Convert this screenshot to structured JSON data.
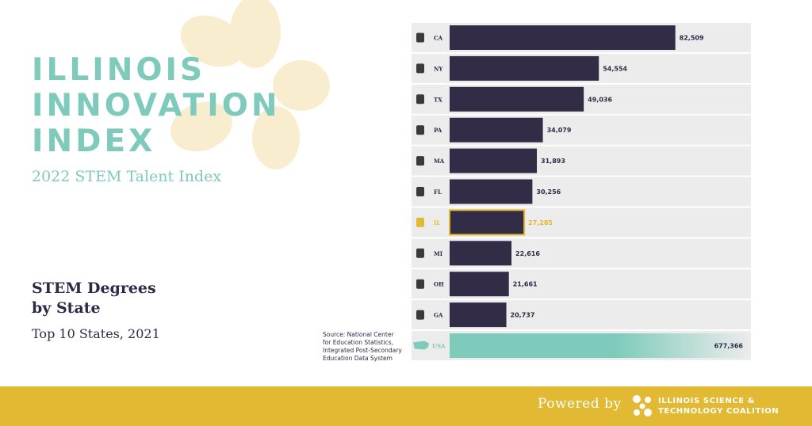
{
  "header": {
    "brand_line1": "ILLINOIS",
    "brand_line2": "INNOVATION",
    "brand_line3": "INDEX",
    "subtitle": "2022 STEM Talent Index"
  },
  "chart_heading": {
    "title_line1": "STEM Degrees",
    "title_line2": "by State",
    "subtitle": "Top 10 States, 2021"
  },
  "source": {
    "line1": "Source: National Center",
    "line2": "for Education Statistics,",
    "line3": "Integrated Post-Secondary",
    "line4": "Education Data System"
  },
  "chart_data": {
    "type": "bar",
    "orientation": "horizontal",
    "title": "STEM Degrees by State",
    "subtitle": "Top 10 States, 2021",
    "categories": [
      "CA",
      "NY",
      "TX",
      "PA",
      "MA",
      "FL",
      "IL",
      "MI",
      "OH",
      "GA"
    ],
    "values": [
      82509,
      54554,
      49036,
      34079,
      31893,
      30256,
      27285,
      22616,
      21661,
      20737
    ],
    "value_labels": [
      "82,509",
      "54,554",
      "49,036",
      "34,079",
      "31,893",
      "30,256",
      "27,285",
      "22,616",
      "21,661",
      "20,737"
    ],
    "highlight": "IL",
    "total": {
      "label": "USA",
      "value": 677366,
      "value_label": "677,366"
    },
    "xlim": [
      0,
      100000
    ],
    "colors": {
      "bar": "#322c47",
      "highlight": "#e2b933",
      "row_band": "#ececec",
      "total_bar": "#7ecbbb",
      "label": "#2e2a45"
    },
    "icons": {
      "CA": "california-icon",
      "NY": "new-york-icon",
      "TX": "texas-icon",
      "PA": "pennsylvania-icon",
      "MA": "massachusetts-icon",
      "FL": "florida-icon",
      "IL": "illinois-icon",
      "MI": "michigan-icon",
      "OH": "ohio-icon",
      "GA": "georgia-icon",
      "USA": "usa-icon"
    }
  },
  "footer": {
    "powered_by": "Powered by",
    "org_line1": "ILLINOIS SCIENCE &",
    "org_line2": "TECHNOLOGY COALITION",
    "background": "#e2b933"
  }
}
